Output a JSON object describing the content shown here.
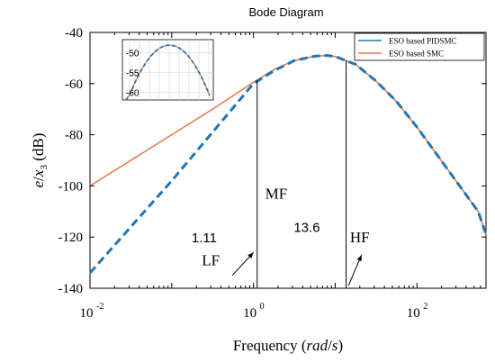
{
  "chart_data": {
    "type": "line",
    "title": "Bode Diagram",
    "xlabel": "Frequency (rad/s)",
    "ylabel": "e/x3 (dB)",
    "xscale": "log",
    "xlim": [
      0.01,
      700
    ],
    "ylim": [
      -140,
      -40
    ],
    "x_ticks": [
      0.01,
      1,
      100
    ],
    "x_tick_labels": [
      "10",
      "10",
      "10"
    ],
    "x_tick_exponents": [
      "-2",
      "0",
      "2"
    ],
    "y_ticks": [
      -140,
      -120,
      -100,
      -80,
      -60,
      -40
    ],
    "y_tick_labels": [
      "-140",
      "-120",
      "-100",
      "-80",
      "-60",
      "-40"
    ],
    "grid": false,
    "legend_position": "top-right",
    "series": [
      {
        "name": "ESO based PIDSMC",
        "color": "#1f77b4",
        "style": "dashed",
        "x": [
          0.01,
          0.0316,
          0.1,
          0.316,
          1,
          1.78,
          3.16,
          5.62,
          8,
          10,
          17.8,
          31.6,
          56.2,
          100,
          178,
          316,
          562,
          700
        ],
        "y": [
          -134,
          -116,
          -98,
          -79,
          -60,
          -55,
          -51,
          -49.3,
          -49,
          -49.4,
          -52.5,
          -59,
          -67,
          -77,
          -88,
          -99,
          -110,
          -119
        ]
      },
      {
        "name": "ESO based SMC",
        "color": "#e8734a",
        "style": "solid",
        "x": [
          0.01,
          0.0316,
          0.1,
          0.316,
          1,
          1.78,
          3.16,
          5.62,
          8,
          10,
          17.8,
          31.6,
          56.2,
          100,
          178,
          316,
          562,
          700
        ],
        "y": [
          -100,
          -90,
          -80,
          -70,
          -59.5,
          -54.5,
          -51,
          -49.3,
          -49,
          -49.4,
          -52.5,
          -59,
          -67,
          -77,
          -88,
          -99,
          -110,
          -119
        ]
      }
    ],
    "annotations": {
      "vlines": [
        1.11,
        13.6
      ],
      "labels": [
        {
          "text": "1.11",
          "x": 0.25,
          "y": -122
        },
        {
          "text": "13.6",
          "x": 4.5,
          "y": -118
        },
        {
          "text": "MF",
          "x": 1.9,
          "y": -105
        },
        {
          "text": "HF",
          "x": 20,
          "y": -122
        },
        {
          "text": "LF",
          "x": 0.3,
          "y": -131
        }
      ],
      "arrows": [
        {
          "from": [
            0.55,
            -135
          ],
          "to": [
            1.0,
            -126
          ]
        },
        {
          "from": [
            14.5,
            -139
          ],
          "to": [
            21,
            -127
          ]
        }
      ]
    },
    "inset": {
      "y_ticks": [
        -50,
        -55,
        -60
      ],
      "y_tick_labels": [
        "-50",
        "-55",
        "-60"
      ]
    }
  }
}
